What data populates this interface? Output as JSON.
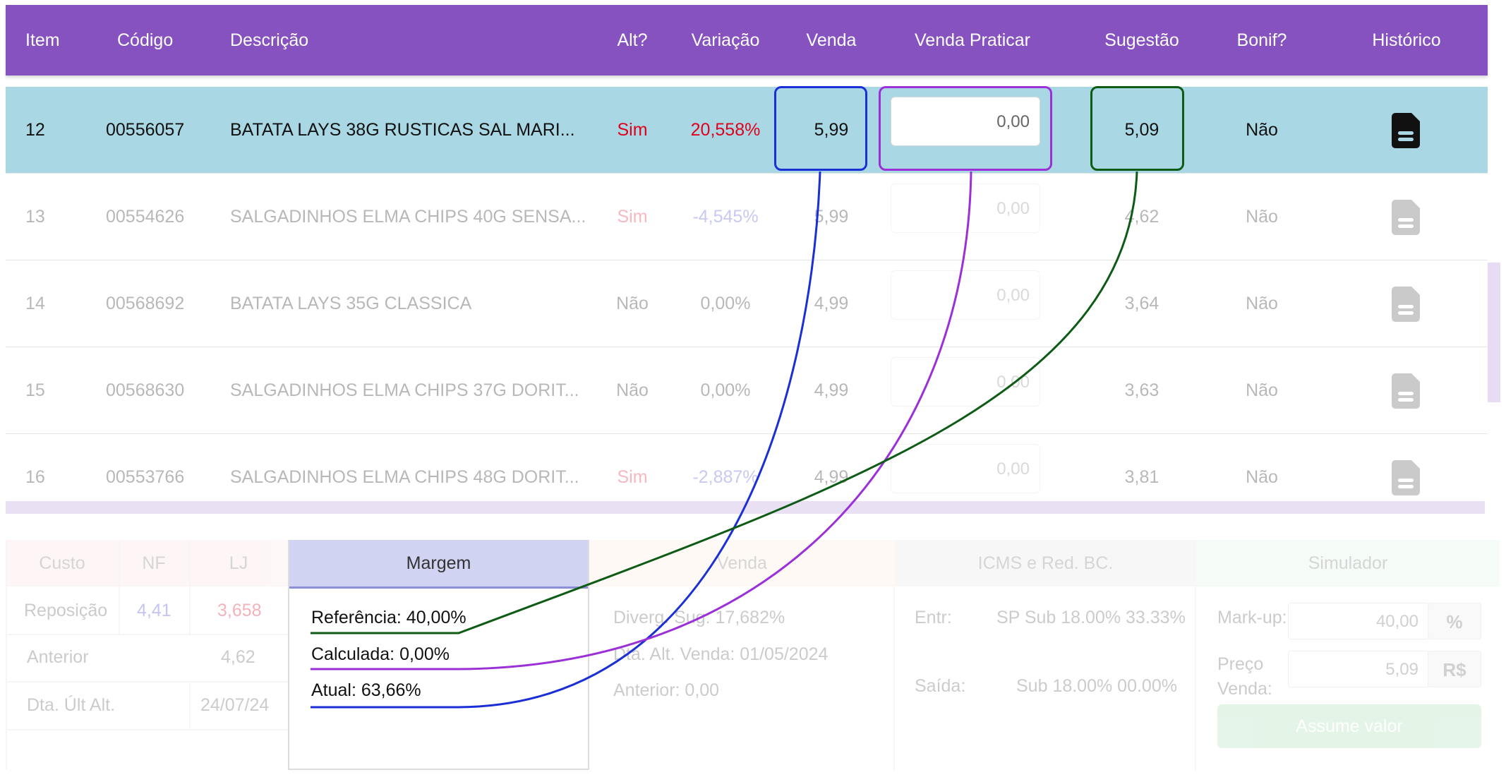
{
  "table": {
    "headers": {
      "item": "Item",
      "codigo": "Código",
      "descricao": "Descrição",
      "alt": "Alt?",
      "variacao": "Variação",
      "venda": "Venda",
      "venda_praticar": "Venda Praticar",
      "sugestao": "Sugestão",
      "bonif": "Bonif?",
      "historico": "Histórico"
    },
    "rows": [
      {
        "item": "12",
        "codigo": "00556057",
        "descricao": "BATATA LAYS 38G RUSTICAS SAL MARI...",
        "alt": "Sim",
        "variacao": "20,558%",
        "venda": "5,99",
        "venda_praticar": "0,00",
        "sugestao": "5,09",
        "bonif": "Não"
      },
      {
        "item": "13",
        "codigo": "00554626",
        "descricao": "SALGADINHOS ELMA CHIPS 40G SENSA...",
        "alt": "Sim",
        "variacao": "-4,545%",
        "venda": "5,99",
        "venda_praticar": "0,00",
        "sugestao": "4,62",
        "bonif": "Não"
      },
      {
        "item": "14",
        "codigo": "00568692",
        "descricao": "BATATA LAYS 35G CLASSICA",
        "alt": "Não",
        "variacao": "0,00%",
        "venda": "4,99",
        "venda_praticar": "0,00",
        "sugestao": "3,64",
        "bonif": "Não"
      },
      {
        "item": "15",
        "codigo": "00568630",
        "descricao": "SALGADINHOS ELMA CHIPS 37G DORIT...",
        "alt": "Não",
        "variacao": "0,00%",
        "venda": "4,99",
        "venda_praticar": "0,00",
        "sugestao": "3,63",
        "bonif": "Não"
      },
      {
        "item": "16",
        "codigo": "00553766",
        "descricao": "SALGADINHOS ELMA CHIPS 48G DORIT...",
        "alt": "Sim",
        "variacao": "-2,887%",
        "venda": "4,99",
        "venda_praticar": "0,00",
        "sugestao": "3,81",
        "bonif": "Não"
      }
    ]
  },
  "custo_panel": {
    "header_custo": "Custo",
    "header_nf": "NF",
    "header_lj": "LJ",
    "reposicao_label": "Reposição",
    "reposicao_nf": "4,41",
    "reposicao_lj": "3,658",
    "anterior_label": "Anterior",
    "anterior_value": "4,62",
    "dta_label": "Dta. Últ Alt.",
    "dta_value": "24/07/24"
  },
  "margem_panel": {
    "header": "Margem",
    "referencia": "Referência: 40,00%",
    "calculada": "Calculada: 0,00%",
    "atual": "Atual: 63,66%"
  },
  "venda_panel": {
    "header": "Venda",
    "diverg": "Diverg. Sug: 17,682%",
    "dta_alt": "Dta. Alt. Venda: 01/05/2024",
    "anterior": "Anterior: 0,00"
  },
  "icms_panel": {
    "header": "ICMS e Red. BC.",
    "entr_label": "Entr:",
    "entr_value": "SP Sub 18.00% 33.33%",
    "saida_label": "Saída:",
    "saida_value": "Sub 18.00% 00.00%"
  },
  "simulador_panel": {
    "header": "Simulador",
    "markup_label": "Mark-up:",
    "markup_value": "40,00",
    "markup_unit": "%",
    "preco_label_1": "Preço",
    "preco_label_2": "Venda:",
    "preco_value": "5,09",
    "preco_unit": "R$",
    "button": "Assume valor"
  },
  "colors": {
    "header_purple": "#8652bf",
    "selected_row": "#a9d8e4",
    "venda_highlight": "#1a2fd6",
    "praticar_highlight": "#9b30d9",
    "sugestao_highlight": "#0e5b16"
  },
  "icons": [
    "document-icon"
  ]
}
